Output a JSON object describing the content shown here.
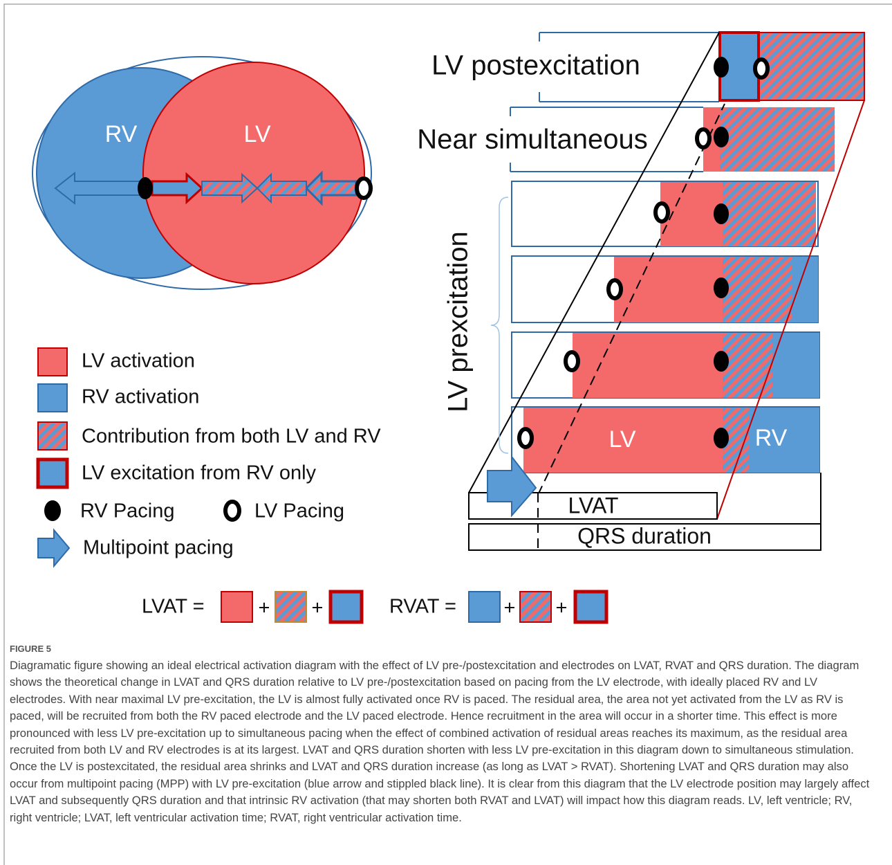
{
  "heart": {
    "rv_label": "RV",
    "lv_label": "LV"
  },
  "legend": {
    "lv_activation": "LV activation",
    "rv_activation": "RV activation",
    "both": "Contribution from both LV and RV",
    "rv_only": "LV excitation from RV only",
    "rv_pacing": "RV Pacing",
    "lv_pacing": "LV Pacing",
    "multipoint": "Multipoint pacing"
  },
  "panel": {
    "postexcitation": "LV postexcitation",
    "near_simultaneous": "Near simultaneous",
    "preexcitation": "LV prexcitation",
    "bar_lv": "LV",
    "bar_rv": "RV",
    "lvat": "LVAT",
    "qrs": "QRS duration"
  },
  "equations": {
    "lvat": "LVAT =",
    "rvat": "RVAT =",
    "plus": "+"
  },
  "figure": {
    "label": "FIGURE 5",
    "caption": "Diagramatic figure showing an ideal electrical activation diagram with the effect of LV pre-/postexcitation and electrodes on LVAT, RVAT and QRS duration. The diagram shows the theoretical change in LVAT and QRS duration relative to LV pre-/postexcitation based on pacing from the LV electrode, with ideally placed RV and LV electrodes. With near maximal LV pre-excitation, the LV is almost fully activated once RV is paced. The residual area, the area not yet activated from the LV as RV is paced, will be recruited from both the RV paced electrode and the LV paced electrode. Hence recruitment in the area will occur in a shorter time. This effect is more pronounced with less LV pre-excitation up to simultaneous pacing when the effect of combined activation of residual areas reaches its maximum, as the residual area recruited from both LV and RV electrodes is at its largest. LVAT and QRS duration shorten with less LV pre-excitation in this diagram down to simultaneous stimulation. Once the LV is postexcitated, the residual area shrinks and LVAT and QRS duration increase (as long as LVAT > RVAT). Shortening LVAT and QRS duration may also occur from multipoint pacing (MPP) with LV pre-excitation (blue arrow and stippled black line). It is clear from this diagram that the LV electrode position may largely affect LVAT and subsequently QRS duration and that intrinsic RV activation (that may shorten both RVAT and LVAT) will impact how this diagram reads. LV, left ventricle; RV, right ventricle; LVAT, left ventricular activation time; RVAT, right ventricular activation time."
  }
}
